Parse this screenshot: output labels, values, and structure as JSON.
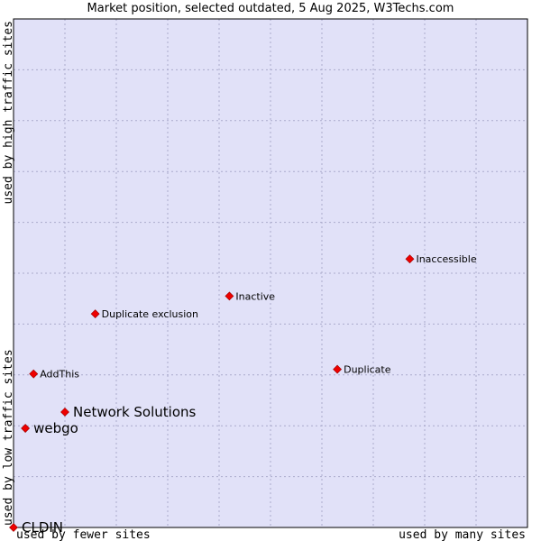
{
  "chart_data": {
    "type": "scatter",
    "title": "Market position, selected outdated, 5 Aug 2025, W3Techs.com",
    "x_axis": {
      "label_low": "used by fewer sites",
      "label_high": "used by many sites",
      "range": [
        0,
        1
      ]
    },
    "y_axis": {
      "label_low": "used by low traffic sites",
      "label_high": "used by high traffic sites",
      "range": [
        0,
        1
      ]
    },
    "grid": true,
    "colors": {
      "plot_background": "#e1e1f8",
      "grid": "#aaaacc",
      "marker": "#ee0000"
    },
    "points": [
      {
        "label": "Inaccessible",
        "x": 0.771,
        "y": 0.528,
        "size": "small"
      },
      {
        "label": "Inactive",
        "x": 0.42,
        "y": 0.455,
        "size": "small"
      },
      {
        "label": "Duplicate exclusion",
        "x": 0.159,
        "y": 0.42,
        "size": "small"
      },
      {
        "label": "Duplicate",
        "x": 0.63,
        "y": 0.311,
        "size": "small"
      },
      {
        "label": "AddThis",
        "x": 0.039,
        "y": 0.302,
        "size": "small"
      },
      {
        "label": "Network Solutions",
        "x": 0.1,
        "y": 0.227,
        "size": "large"
      },
      {
        "label": "webgo",
        "x": 0.023,
        "y": 0.195,
        "size": "large"
      },
      {
        "label": "CLDIN",
        "x": 0.0,
        "y": 0.0,
        "size": "large"
      }
    ]
  }
}
